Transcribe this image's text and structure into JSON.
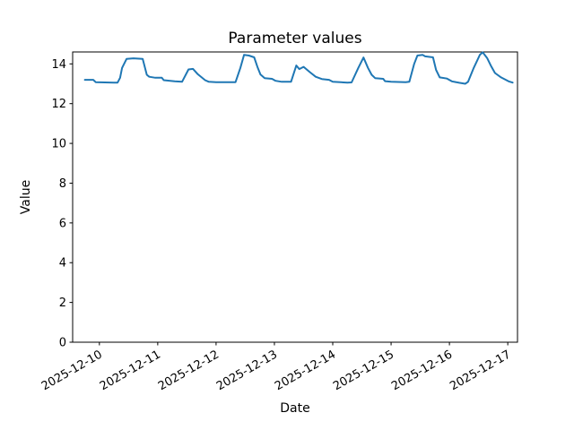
{
  "chart_data": {
    "type": "line",
    "title": "Parameter values",
    "xlabel": "Date",
    "ylabel": "Value",
    "x_ticks": [
      "2025-12-10",
      "2025-12-11",
      "2025-12-12",
      "2025-12-13",
      "2025-12-14",
      "2025-12-15",
      "2025-12-16",
      "2025-12-17"
    ],
    "y_ticks": [
      0,
      2,
      4,
      6,
      8,
      10,
      12,
      14
    ],
    "xlim": [
      "2025-12-09T13:00",
      "2025-12-17T04:00"
    ],
    "ylim": [
      0,
      14.6
    ],
    "line_color": "#1f77b4",
    "axis_color": "#000000",
    "background": "#ffffff",
    "legend": "none",
    "grid": false,
    "series": [
      {
        "points": [
          [
            "2025-12-09T18:00",
            13.2
          ],
          [
            "2025-12-09T21:30",
            13.2
          ],
          [
            "2025-12-09T22:30",
            13.08
          ],
          [
            "2025-12-10T06:00",
            13.06
          ],
          [
            "2025-12-10T07:30",
            13.06
          ],
          [
            "2025-12-10T08:30",
            13.3
          ],
          [
            "2025-12-10T09:20",
            13.8
          ],
          [
            "2025-12-10T11:10",
            14.25
          ],
          [
            "2025-12-10T14:00",
            14.28
          ],
          [
            "2025-12-10T17:50",
            14.25
          ],
          [
            "2025-12-10T19:30",
            13.45
          ],
          [
            "2025-12-10T20:30",
            13.35
          ],
          [
            "2025-12-10T23:00",
            13.3
          ],
          [
            "2025-12-11T01:40",
            13.3
          ],
          [
            "2025-12-11T02:30",
            13.18
          ],
          [
            "2025-12-11T07:00",
            13.12
          ],
          [
            "2025-12-11T10:00",
            13.1
          ],
          [
            "2025-12-11T12:40",
            13.72
          ],
          [
            "2025-12-11T14:30",
            13.75
          ],
          [
            "2025-12-11T16:30",
            13.48
          ],
          [
            "2025-12-11T19:30",
            13.18
          ],
          [
            "2025-12-11T21:00",
            13.1
          ],
          [
            "2025-12-12T00:00",
            13.08
          ],
          [
            "2025-12-12T08:00",
            13.08
          ],
          [
            "2025-12-12T10:00",
            13.8
          ],
          [
            "2025-12-12T11:30",
            14.45
          ],
          [
            "2025-12-12T13:30",
            14.42
          ],
          [
            "2025-12-12T15:40",
            14.33
          ],
          [
            "2025-12-12T17:00",
            13.85
          ],
          [
            "2025-12-12T18:15",
            13.47
          ],
          [
            "2025-12-12T20:00",
            13.28
          ],
          [
            "2025-12-12T23:00",
            13.25
          ],
          [
            "2025-12-13T00:30",
            13.15
          ],
          [
            "2025-12-13T03:00",
            13.1
          ],
          [
            "2025-12-13T06:50",
            13.1
          ],
          [
            "2025-12-13T09:00",
            13.92
          ],
          [
            "2025-12-13T10:15",
            13.74
          ],
          [
            "2025-12-13T12:00",
            13.85
          ],
          [
            "2025-12-13T14:30",
            13.59
          ],
          [
            "2025-12-13T17:00",
            13.35
          ],
          [
            "2025-12-13T19:30",
            13.24
          ],
          [
            "2025-12-13T22:30",
            13.2
          ],
          [
            "2025-12-14T00:00",
            13.1
          ],
          [
            "2025-12-14T06:00",
            13.06
          ],
          [
            "2025-12-14T07:45",
            13.07
          ],
          [
            "2025-12-14T10:30",
            13.8
          ],
          [
            "2025-12-14T12:40",
            14.32
          ],
          [
            "2025-12-14T14:30",
            13.8
          ],
          [
            "2025-12-14T16:00",
            13.45
          ],
          [
            "2025-12-14T17:30",
            13.28
          ],
          [
            "2025-12-14T20:45",
            13.25
          ],
          [
            "2025-12-14T21:30",
            13.13
          ],
          [
            "2025-12-15T00:00",
            13.1
          ],
          [
            "2025-12-15T06:00",
            13.08
          ],
          [
            "2025-12-15T07:30",
            13.1
          ],
          [
            "2025-12-15T09:30",
            14.0
          ],
          [
            "2025-12-15T10:50",
            14.42
          ],
          [
            "2025-12-15T13:00",
            14.45
          ],
          [
            "2025-12-15T14:00",
            14.38
          ],
          [
            "2025-12-15T17:15",
            14.33
          ],
          [
            "2025-12-15T18:30",
            13.7
          ],
          [
            "2025-12-15T20:00",
            13.32
          ],
          [
            "2025-12-15T23:00",
            13.26
          ],
          [
            "2025-12-16T01:00",
            13.12
          ],
          [
            "2025-12-16T04:00",
            13.05
          ],
          [
            "2025-12-16T06:30",
            13.0
          ],
          [
            "2025-12-16T07:40",
            13.1
          ],
          [
            "2025-12-16T10:00",
            13.8
          ],
          [
            "2025-12-16T12:30",
            14.45
          ],
          [
            "2025-12-16T13:40",
            14.58
          ],
          [
            "2025-12-16T15:30",
            14.3
          ],
          [
            "2025-12-16T17:00",
            13.92
          ],
          [
            "2025-12-16T18:45",
            13.54
          ],
          [
            "2025-12-16T21:15",
            13.32
          ],
          [
            "2025-12-17T00:20",
            13.12
          ],
          [
            "2025-12-17T02:00",
            13.06
          ]
        ]
      }
    ]
  }
}
